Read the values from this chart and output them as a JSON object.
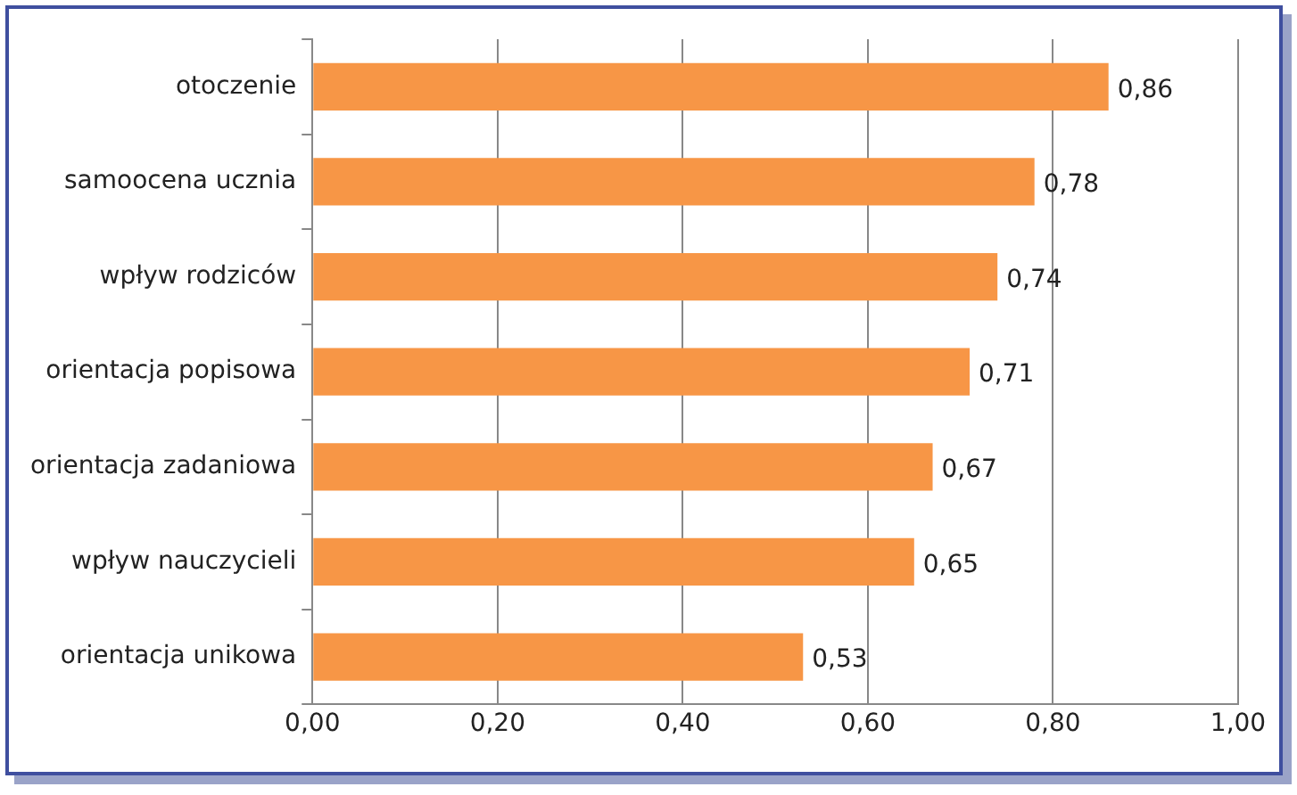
{
  "chart_data": {
    "type": "bar",
    "orientation": "horizontal",
    "categories": [
      "otoczenie",
      "samoocena ucznia",
      "wpływ rodziców",
      "orientacja popisowa",
      "orientacja zadaniowa",
      "wpływ nauczycieli",
      "orientacja unikowa"
    ],
    "values": [
      0.86,
      0.78,
      0.74,
      0.71,
      0.67,
      0.65,
      0.53
    ],
    "value_labels": [
      "0,86",
      "0,78",
      "0,74",
      "0,71",
      "0,67",
      "0,65",
      "0,53"
    ],
    "color": "#f79646",
    "xlim": [
      0,
      1
    ],
    "xticks": [
      {
        "value": 0,
        "label": "0,00"
      },
      {
        "value": 0.2,
        "label": "0,20"
      },
      {
        "value": 0.4,
        "label": "0,40"
      },
      {
        "value": 0.6,
        "label": "0,60"
      },
      {
        "value": 0.8,
        "label": "0,80"
      },
      {
        "value": 1,
        "label": "1,00"
      }
    ],
    "grid": "x",
    "legend": false
  }
}
